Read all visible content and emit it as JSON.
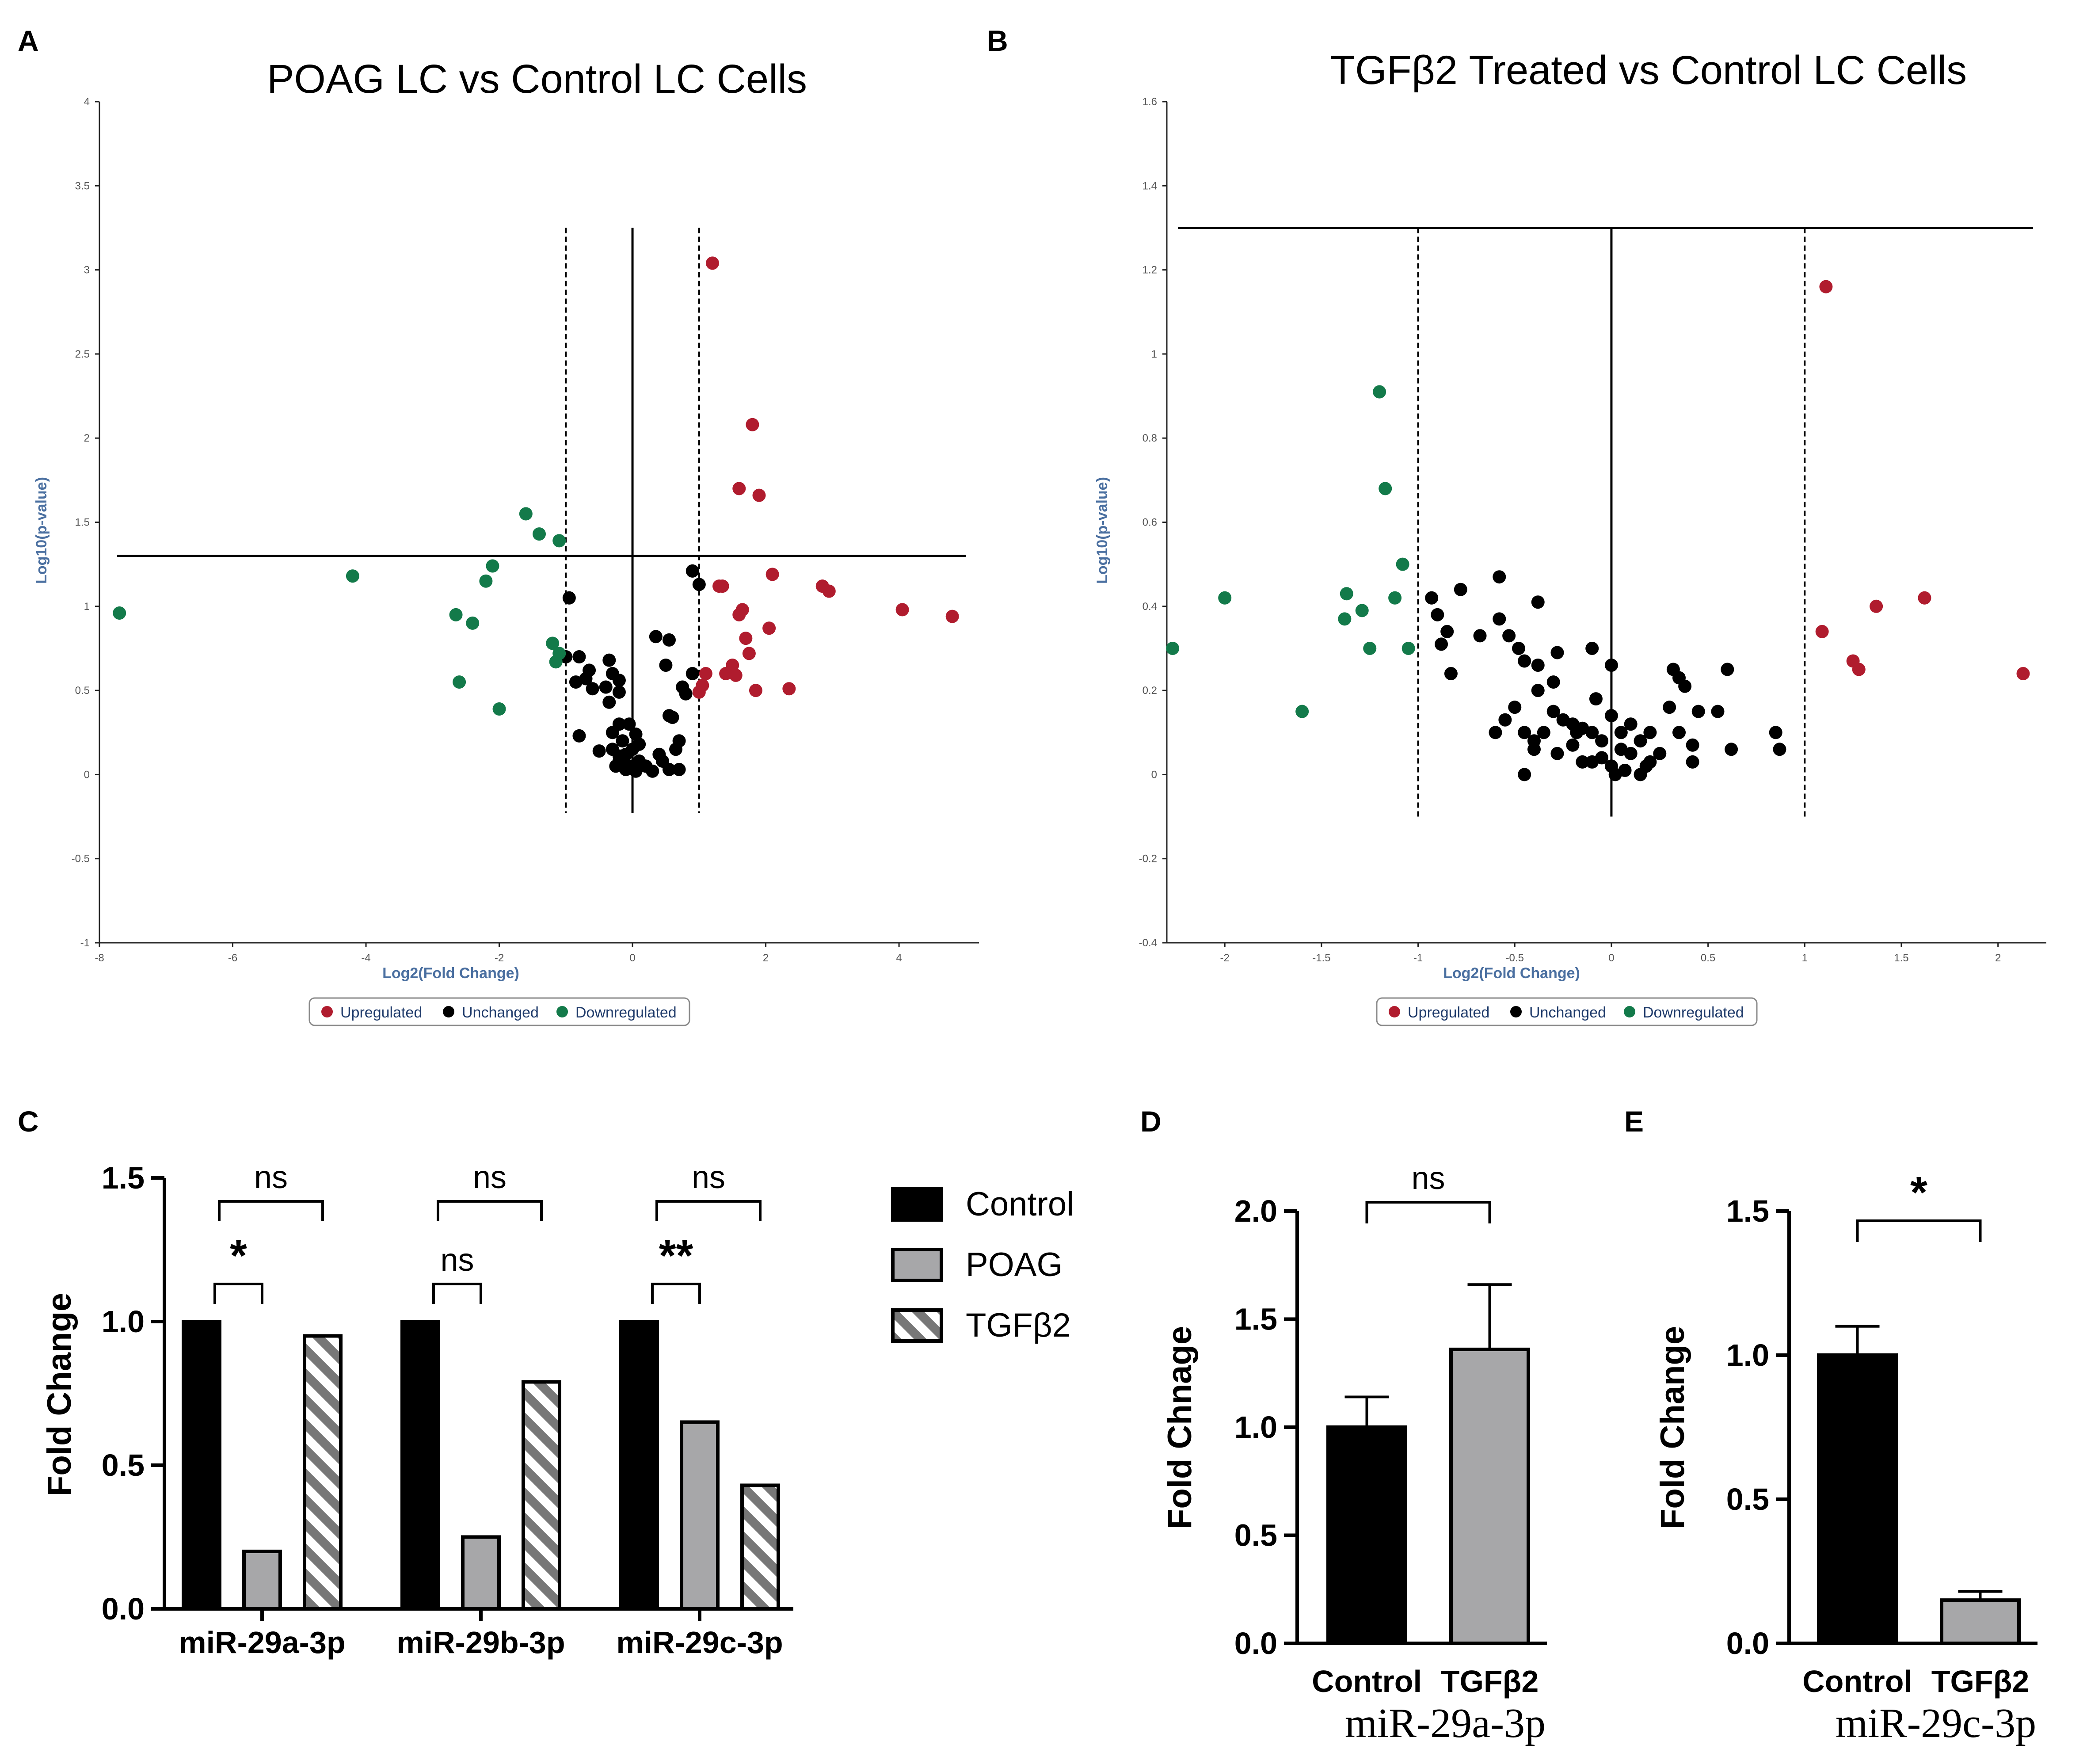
{
  "colors": {
    "upregulated": "#b01c2e",
    "unchanged": "#000000",
    "downregulated": "#137a4a",
    "axis_label": "#4a6fa0",
    "tick": "#555555",
    "control_bar": "#000000",
    "poag_bar": "#a7a7a9",
    "tgfb2_stripe": "#777777"
  },
  "chart_data": [
    {
      "panel": "A",
      "type": "scatter",
      "title": "POAG LC vs Control LC Cells",
      "xlabel": "Log2(Fold Change)",
      "ylabel": "Log10(p-value)",
      "xlim": [
        -8,
        5.2
      ],
      "ylim": [
        -1,
        4
      ],
      "xticks": [
        "-8",
        "-6",
        "-4",
        "-2",
        "0",
        "2",
        "4"
      ],
      "xtick_values": [
        -8,
        -6,
        -4,
        -2,
        0,
        2,
        4
      ],
      "yticks": [
        "-1",
        "-0.5",
        "0",
        "0.5",
        "1",
        "1.5",
        "2",
        "2.5",
        "3",
        "3.5",
        "4"
      ],
      "ytick_values": [
        -1,
        -0.5,
        0,
        0.5,
        1,
        1.5,
        2,
        2.5,
        3,
        3.5,
        4
      ],
      "threshold_y": 1.3,
      "threshold_x": [
        -1,
        1
      ],
      "legend": [
        "Upregulated",
        "Unchanged",
        "Downregulated"
      ],
      "series": [
        {
          "name": "Upregulated",
          "color_key": "upregulated",
          "points": [
            [
              1.2,
              3.04
            ],
            [
              1.8,
              2.08
            ],
            [
              1.9,
              1.66
            ],
            [
              1.6,
              1.7
            ],
            [
              1.3,
              1.12
            ],
            [
              1.35,
              1.12
            ],
            [
              2.1,
              1.19
            ],
            [
              2.85,
              1.12
            ],
            [
              2.95,
              1.09
            ],
            [
              4.05,
              0.98
            ],
            [
              4.8,
              0.94
            ],
            [
              1.6,
              0.95
            ],
            [
              1.65,
              0.98
            ],
            [
              1.7,
              0.81
            ],
            [
              2.05,
              0.87
            ],
            [
              1.75,
              0.72
            ],
            [
              1.5,
              0.65
            ],
            [
              1.4,
              0.6
            ],
            [
              1.55,
              0.59
            ],
            [
              1.85,
              0.5
            ],
            [
              2.35,
              0.51
            ],
            [
              1.05,
              0.53
            ],
            [
              1.0,
              0.49
            ],
            [
              1.1,
              0.6
            ]
          ]
        },
        {
          "name": "Unchanged",
          "color_key": "unchanged",
          "points": [
            [
              -0.95,
              1.05
            ],
            [
              0.9,
              1.21
            ],
            [
              1.0,
              1.13
            ],
            [
              -1.0,
              0.7
            ],
            [
              -0.8,
              0.7
            ],
            [
              -0.65,
              0.62
            ],
            [
              -0.7,
              0.57
            ],
            [
              -0.6,
              0.51
            ],
            [
              -0.85,
              0.55
            ],
            [
              -0.35,
              0.68
            ],
            [
              -0.3,
              0.6
            ],
            [
              -0.4,
              0.52
            ],
            [
              -0.35,
              0.43
            ],
            [
              -0.2,
              0.49
            ],
            [
              -0.2,
              0.56
            ],
            [
              0.35,
              0.82
            ],
            [
              0.55,
              0.8
            ],
            [
              0.5,
              0.65
            ],
            [
              0.75,
              0.52
            ],
            [
              0.9,
              0.6
            ],
            [
              0.8,
              0.48
            ],
            [
              0.55,
              0.35
            ],
            [
              0.6,
              0.34
            ],
            [
              0.7,
              0.2
            ],
            [
              0.65,
              0.15
            ],
            [
              -0.8,
              0.23
            ],
            [
              -0.5,
              0.14
            ],
            [
              -0.3,
              0.25
            ],
            [
              -0.2,
              0.3
            ],
            [
              -0.05,
              0.3
            ],
            [
              0.05,
              0.24
            ],
            [
              0.1,
              0.18
            ],
            [
              -0.3,
              0.15
            ],
            [
              -0.1,
              0.12
            ],
            [
              0.1,
              0.08
            ],
            [
              0.2,
              0.05
            ],
            [
              -0.2,
              0.08
            ],
            [
              -0.05,
              0.05
            ],
            [
              -0.1,
              0.03
            ],
            [
              0.05,
              0.02
            ],
            [
              0.4,
              0.12
            ],
            [
              0.45,
              0.08
            ],
            [
              0.55,
              0.03
            ],
            [
              0.7,
              0.03
            ],
            [
              0.0,
              0.15
            ],
            [
              -0.25,
              0.05
            ],
            [
              -0.15,
              0.2
            ],
            [
              0.3,
              0.02
            ],
            [
              -0.2,
              0.11
            ]
          ]
        },
        {
          "name": "Downregulated",
          "color_key": "downregulated",
          "points": [
            [
              -7.7,
              0.96
            ],
            [
              -4.2,
              1.18
            ],
            [
              -1.6,
              1.55
            ],
            [
              -1.4,
              1.43
            ],
            [
              -1.1,
              1.39
            ],
            [
              -2.1,
              1.24
            ],
            [
              -2.2,
              1.15
            ],
            [
              -2.65,
              0.95
            ],
            [
              -2.4,
              0.9
            ],
            [
              -2.6,
              0.55
            ],
            [
              -2.0,
              0.39
            ],
            [
              -1.2,
              0.78
            ],
            [
              -1.1,
              0.72
            ],
            [
              -1.15,
              0.67
            ]
          ]
        }
      ]
    },
    {
      "panel": "B",
      "type": "scatter",
      "title": "TGFβ2 Treated vs Control LC Cells",
      "xlabel": "Log2(Fold Change)",
      "ylabel": "Log10(p-value)",
      "xlim": [
        -2.3,
        2.25
      ],
      "ylim": [
        -0.4,
        1.6
      ],
      "xticks": [
        "-2",
        "-1.5",
        "-1",
        "-0.5",
        "0",
        "0.5",
        "1",
        "1.5",
        "2"
      ],
      "xtick_values": [
        -2,
        -1.5,
        -1,
        -0.5,
        0,
        0.5,
        1,
        1.5,
        2
      ],
      "yticks": [
        "-0.4",
        "-0.2",
        "0",
        "0.2",
        "0.4",
        "0.6",
        "0.8",
        "1",
        "1.2",
        "1.4",
        "1.6"
      ],
      "ytick_values": [
        -0.4,
        -0.2,
        0,
        0.2,
        0.4,
        0.6,
        0.8,
        1,
        1.2,
        1.4,
        1.6
      ],
      "threshold_y": 1.3,
      "threshold_x": [
        -1,
        1
      ],
      "legend": [
        "Upregulated",
        "Unchanged",
        "Downregulated"
      ],
      "series": [
        {
          "name": "Upregulated",
          "color_key": "upregulated",
          "points": [
            [
              1.11,
              1.16
            ],
            [
              1.09,
              0.34
            ],
            [
              1.37,
              0.4
            ],
            [
              1.62,
              0.42
            ],
            [
              1.25,
              0.27
            ],
            [
              1.28,
              0.25
            ],
            [
              2.13,
              0.24
            ]
          ]
        },
        {
          "name": "Unchanged",
          "color_key": "unchanged",
          "points": [
            [
              -0.93,
              0.42
            ],
            [
              -0.9,
              0.38
            ],
            [
              -0.85,
              0.34
            ],
            [
              -0.88,
              0.31
            ],
            [
              -0.78,
              0.44
            ],
            [
              -0.68,
              0.33
            ],
            [
              -0.58,
              0.47
            ],
            [
              -0.58,
              0.37
            ],
            [
              -0.53,
              0.33
            ],
            [
              -0.48,
              0.3
            ],
            [
              -0.38,
              0.41
            ],
            [
              -0.45,
              0.27
            ],
            [
              -0.38,
              0.26
            ],
            [
              -0.28,
              0.29
            ],
            [
              -0.3,
              0.22
            ],
            [
              -0.1,
              0.3
            ],
            [
              0.0,
              0.26
            ],
            [
              -0.83,
              0.24
            ],
            [
              -0.5,
              0.16
            ],
            [
              -0.55,
              0.13
            ],
            [
              -0.45,
              0.1
            ],
            [
              -0.4,
              0.08
            ],
            [
              -0.35,
              0.1
            ],
            [
              -0.3,
              0.15
            ],
            [
              -0.25,
              0.13
            ],
            [
              -0.2,
              0.12
            ],
            [
              -0.15,
              0.11
            ],
            [
              -0.1,
              0.1
            ],
            [
              -0.05,
              0.08
            ],
            [
              0.0,
              0.14
            ],
            [
              0.05,
              0.1
            ],
            [
              0.1,
              0.12
            ],
            [
              0.15,
              0.08
            ],
            [
              0.2,
              0.1
            ],
            [
              0.25,
              0.05
            ],
            [
              0.3,
              0.16
            ],
            [
              0.35,
              0.1
            ],
            [
              0.45,
              0.15
            ],
            [
              0.55,
              0.15
            ],
            [
              0.6,
              0.25
            ],
            [
              0.32,
              0.25
            ],
            [
              0.35,
              0.23
            ],
            [
              0.38,
              0.21
            ],
            [
              -0.6,
              0.1
            ],
            [
              -0.4,
              0.06
            ],
            [
              -0.2,
              0.07
            ],
            [
              -0.15,
              0.03
            ],
            [
              -0.05,
              0.04
            ],
            [
              0.0,
              0.02
            ],
            [
              0.02,
              0.0
            ],
            [
              0.07,
              0.01
            ],
            [
              0.1,
              0.05
            ],
            [
              0.15,
              0.0
            ],
            [
              0.18,
              0.02
            ],
            [
              0.42,
              0.07
            ],
            [
              0.62,
              0.06
            ],
            [
              0.85,
              0.1
            ],
            [
              0.87,
              0.06
            ],
            [
              -0.28,
              0.05
            ],
            [
              -0.18,
              0.1
            ],
            [
              -0.45,
              0.0
            ],
            [
              -0.1,
              0.03
            ],
            [
              0.05,
              0.06
            ],
            [
              -0.38,
              0.2
            ],
            [
              0.42,
              0.03
            ],
            [
              -0.08,
              0.18
            ],
            [
              0.2,
              0.03
            ]
          ]
        },
        {
          "name": "Downregulated",
          "color_key": "downregulated",
          "points": [
            [
              -1.2,
              0.91
            ],
            [
              -1.17,
              0.68
            ],
            [
              -1.08,
              0.5
            ],
            [
              -1.37,
              0.43
            ],
            [
              -1.12,
              0.42
            ],
            [
              -1.29,
              0.39
            ],
            [
              -1.38,
              0.37
            ],
            [
              -1.25,
              0.3
            ],
            [
              -1.05,
              0.3
            ],
            [
              -2.0,
              0.42
            ],
            [
              -2.27,
              0.3
            ],
            [
              -1.6,
              0.15
            ]
          ]
        }
      ]
    },
    {
      "panel": "C",
      "type": "bar",
      "ylabel": "Fold Change",
      "ylim": [
        0,
        1.5
      ],
      "yticks": [
        "0.0",
        "0.5",
        "1.0",
        "1.5"
      ],
      "ytick_values": [
        0,
        0.5,
        1.0,
        1.5
      ],
      "categories": [
        "miR-29a-3p",
        "miR-29b-3p",
        "miR-29c-3p"
      ],
      "series": [
        {
          "name": "Control",
          "values": [
            1.0,
            1.0,
            1.0
          ]
        },
        {
          "name": "POAG",
          "values": [
            0.2,
            0.25,
            0.65
          ]
        },
        {
          "name": "TGFβ2",
          "values": [
            0.95,
            0.79,
            0.43
          ]
        }
      ],
      "legend": [
        "Control",
        "POAG",
        "TGFβ2"
      ],
      "annotations": {
        "control_vs_tgfb2": [
          "ns",
          "ns",
          "ns"
        ],
        "control_vs_poag": [
          "*",
          "ns",
          "**"
        ]
      }
    },
    {
      "panel": "D",
      "type": "bar",
      "ylabel": "Fold Chnage",
      "ylim": [
        0,
        2.0
      ],
      "yticks": [
        "0.0",
        "0.5",
        "1.0",
        "1.5",
        "2.0"
      ],
      "ytick_values": [
        0,
        0.5,
        1.0,
        1.5,
        2.0
      ],
      "categories": [
        "Control",
        "TGFβ2"
      ],
      "values": [
        1.0,
        1.36
      ],
      "errors": [
        0.14,
        0.3
      ],
      "xlabel": "miR-29a-3p",
      "significance": "ns"
    },
    {
      "panel": "E",
      "type": "bar",
      "ylabel": "Fold Change",
      "ylim": [
        0,
        1.5
      ],
      "yticks": [
        "0.0",
        "0.5",
        "1.0",
        "1.5"
      ],
      "ytick_values": [
        0,
        0.5,
        1.0,
        1.5
      ],
      "categories": [
        "Control",
        "TGFβ2"
      ],
      "values": [
        1.0,
        0.15
      ],
      "errors": [
        0.1,
        0.03
      ],
      "xlabel": "miR-29c-3p",
      "significance": "*"
    }
  ]
}
